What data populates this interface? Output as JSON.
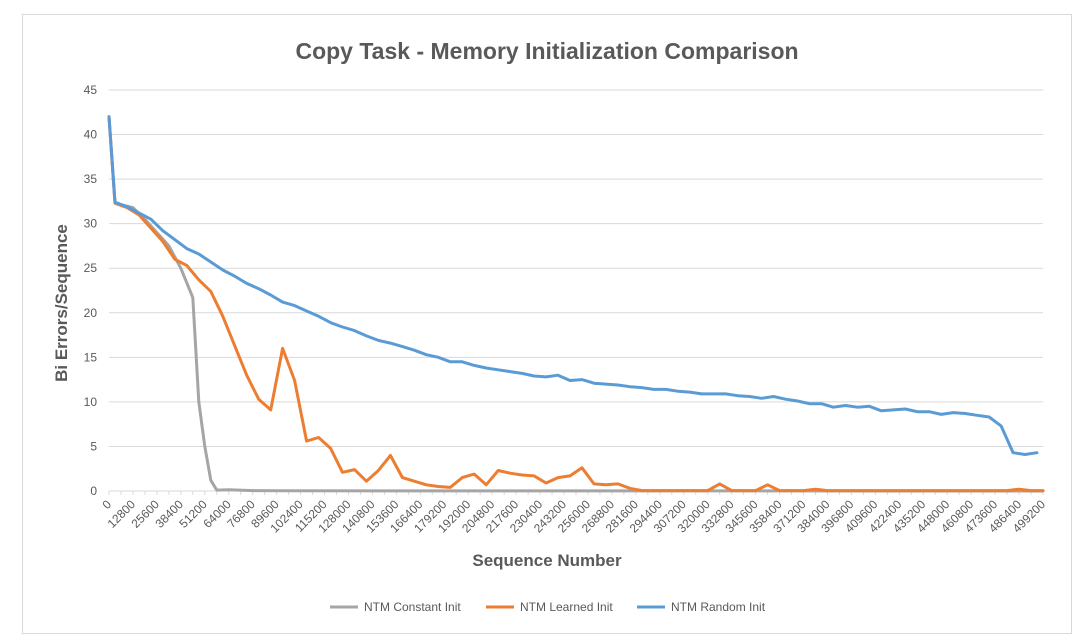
{
  "chart_data": {
    "type": "line",
    "title": "Copy Task - Memory Initialization Comparison",
    "xlabel": "Sequence Number",
    "ylabel": "Bi Errors/Sequence",
    "ylim": [
      0,
      45
    ],
    "yticks": [
      0,
      5,
      10,
      15,
      20,
      25,
      30,
      35,
      40,
      45
    ],
    "grid": true,
    "legend_position": "bottom",
    "x": [
      0,
      12800,
      25600,
      38400,
      51200,
      64000,
      76800,
      89600,
      102400,
      115200,
      128000,
      140800,
      153600,
      166400,
      179200,
      192000,
      204800,
      217600,
      230400,
      243200,
      256000,
      268800,
      281600,
      294400,
      307200,
      320000,
      332800,
      345600,
      358400,
      371200,
      384000,
      396800,
      409600,
      422400,
      435200,
      448000,
      460800,
      473600,
      486400,
      499200
    ],
    "x_step": 6400,
    "series": [
      {
        "name": "NTM Constant Init",
        "color": "#a5a5a5",
        "points": [
          [
            0,
            42
          ],
          [
            3200,
            32.3
          ],
          [
            12800,
            31.8
          ],
          [
            19200,
            30.5
          ],
          [
            25600,
            29
          ],
          [
            32000,
            27.5
          ],
          [
            38400,
            25
          ],
          [
            44800,
            21.7
          ],
          [
            48000,
            10
          ],
          [
            51200,
            5
          ],
          [
            54400,
            1.2
          ],
          [
            57600,
            0.1
          ],
          [
            64000,
            0.15
          ],
          [
            76800,
            0.05
          ],
          [
            89600,
            0.02
          ],
          [
            499200,
            0
          ]
        ]
      },
      {
        "name": "NTM Learned Init",
        "color": "#ed7d31",
        "points": [
          [
            0,
            42
          ],
          [
            3200,
            32.3
          ],
          [
            9600,
            31.8
          ],
          [
            16000,
            31
          ],
          [
            22400,
            29.5
          ],
          [
            28800,
            28
          ],
          [
            35200,
            26
          ],
          [
            41600,
            25.3
          ],
          [
            48000,
            23.7
          ],
          [
            54400,
            22.4
          ],
          [
            60800,
            19.6
          ],
          [
            67200,
            16.3
          ],
          [
            73600,
            13
          ],
          [
            80000,
            10.3
          ],
          [
            86400,
            9.1
          ],
          [
            92800,
            16
          ],
          [
            99200,
            12.4
          ],
          [
            105600,
            5.6
          ],
          [
            112000,
            6
          ],
          [
            118400,
            4.8
          ],
          [
            124800,
            2.1
          ],
          [
            131200,
            2.4
          ],
          [
            137600,
            1.1
          ],
          [
            144000,
            2.3
          ],
          [
            150400,
            4
          ],
          [
            156800,
            1.5
          ],
          [
            163200,
            1.1
          ],
          [
            169600,
            0.7
          ],
          [
            176000,
            0.5
          ],
          [
            182400,
            0.4
          ],
          [
            188800,
            1.5
          ],
          [
            195200,
            1.9
          ],
          [
            201600,
            0.7
          ],
          [
            208000,
            2.3
          ],
          [
            214400,
            2
          ],
          [
            220800,
            1.8
          ],
          [
            227200,
            1.7
          ],
          [
            233600,
            0.9
          ],
          [
            240000,
            1.5
          ],
          [
            246400,
            1.7
          ],
          [
            252800,
            2.6
          ],
          [
            259200,
            0.8
          ],
          [
            265600,
            0.7
          ],
          [
            272000,
            0.8
          ],
          [
            278400,
            0.3
          ],
          [
            284800,
            0.05
          ],
          [
            320000,
            0.05
          ],
          [
            326400,
            0.8
          ],
          [
            332800,
            0.05
          ],
          [
            345600,
            0.05
          ],
          [
            352000,
            0.7
          ],
          [
            358400,
            0.05
          ],
          [
            371200,
            0.05
          ],
          [
            377600,
            0.2
          ],
          [
            384000,
            0.05
          ],
          [
            480000,
            0.05
          ],
          [
            486400,
            0.2
          ],
          [
            492800,
            0.05
          ],
          [
            499200,
            0.05
          ]
        ]
      },
      {
        "name": "NTM Random Init",
        "color": "#5b9bd5",
        "points": [
          [
            0,
            42
          ],
          [
            3200,
            32.4
          ],
          [
            9600,
            31.9
          ],
          [
            16000,
            31.2
          ],
          [
            22400,
            30.5
          ],
          [
            28800,
            29.2
          ],
          [
            35200,
            28.2
          ],
          [
            41600,
            27.2
          ],
          [
            48000,
            26.6
          ],
          [
            54400,
            25.7
          ],
          [
            60800,
            24.8
          ],
          [
            67200,
            24.1
          ],
          [
            73600,
            23.3
          ],
          [
            80000,
            22.7
          ],
          [
            86400,
            22
          ],
          [
            92800,
            21.2
          ],
          [
            99200,
            20.8
          ],
          [
            105600,
            20.2
          ],
          [
            112000,
            19.6
          ],
          [
            118400,
            18.9
          ],
          [
            124800,
            18.4
          ],
          [
            131200,
            18
          ],
          [
            137600,
            17.4
          ],
          [
            144000,
            16.9
          ],
          [
            150400,
            16.6
          ],
          [
            156800,
            16.2
          ],
          [
            163200,
            15.8
          ],
          [
            169600,
            15.3
          ],
          [
            176000,
            15
          ],
          [
            182400,
            14.5
          ],
          [
            188800,
            14.5
          ],
          [
            195200,
            14.1
          ],
          [
            201600,
            13.8
          ],
          [
            208000,
            13.6
          ],
          [
            214400,
            13.4
          ],
          [
            220800,
            13.2
          ],
          [
            227200,
            12.9
          ],
          [
            233600,
            12.8
          ],
          [
            240000,
            13
          ],
          [
            246400,
            12.4
          ],
          [
            252800,
            12.5
          ],
          [
            259200,
            12.1
          ],
          [
            265600,
            12
          ],
          [
            272000,
            11.9
          ],
          [
            278400,
            11.7
          ],
          [
            284800,
            11.6
          ],
          [
            291200,
            11.4
          ],
          [
            297600,
            11.4
          ],
          [
            304000,
            11.2
          ],
          [
            310400,
            11.1
          ],
          [
            316800,
            10.9
          ],
          [
            323200,
            10.9
          ],
          [
            329600,
            10.9
          ],
          [
            336000,
            10.7
          ],
          [
            342400,
            10.6
          ],
          [
            348800,
            10.4
          ],
          [
            355200,
            10.6
          ],
          [
            361600,
            10.3
          ],
          [
            368000,
            10.1
          ],
          [
            374400,
            9.8
          ],
          [
            380800,
            9.8
          ],
          [
            387200,
            9.4
          ],
          [
            393600,
            9.6
          ],
          [
            400000,
            9.4
          ],
          [
            406400,
            9.5
          ],
          [
            412800,
            9
          ],
          [
            419200,
            9.1
          ],
          [
            425600,
            9.2
          ],
          [
            432000,
            8.9
          ],
          [
            438400,
            8.9
          ],
          [
            444800,
            8.6
          ],
          [
            451200,
            8.8
          ],
          [
            457600,
            8.7
          ],
          [
            464000,
            8.5
          ],
          [
            470400,
            8.3
          ],
          [
            476800,
            7.3
          ],
          [
            483200,
            4.3
          ],
          [
            489600,
            4.1
          ],
          [
            496000,
            4.3
          ]
        ]
      }
    ]
  }
}
